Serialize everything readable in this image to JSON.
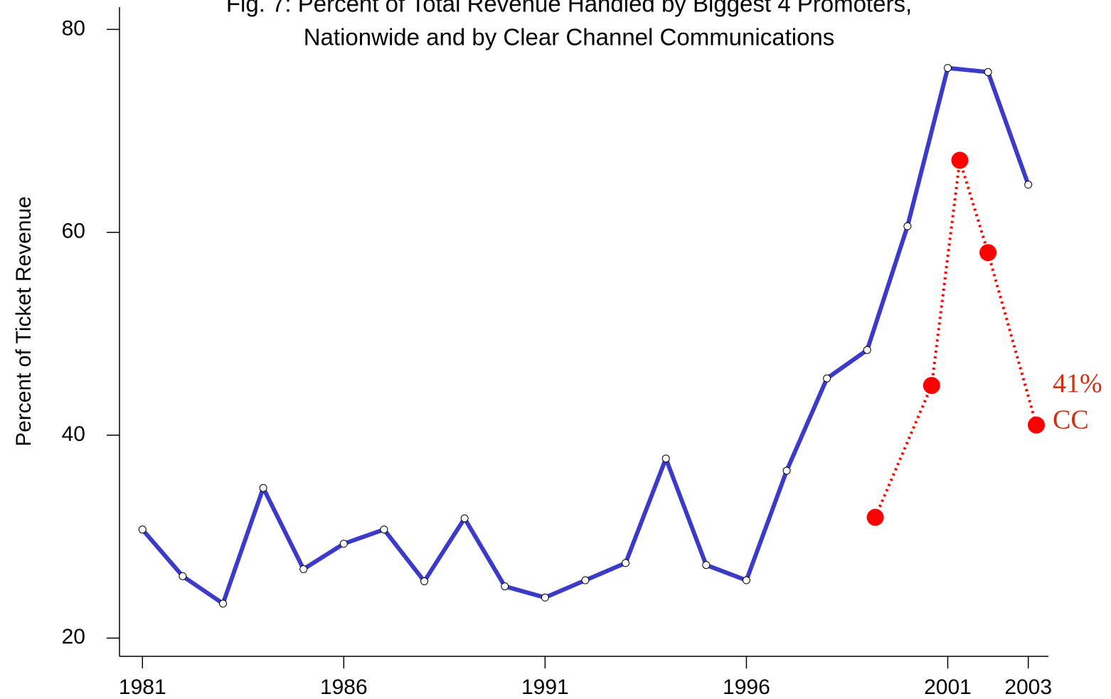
{
  "chart_data": {
    "type": "line",
    "title": [
      "Fig. 7: Percent of Total Revenue Handled by Biggest 4 Promoters,",
      "Nationwide and by Clear Channel Communications"
    ],
    "y_label": "Percent of Ticket Revenue",
    "xlim": [
      1980.43,
      2003.5
    ],
    "xticks": [
      1981,
      1986,
      1991,
      1996,
      2001,
      2003
    ],
    "ylim": [
      18.2,
      82.2
    ],
    "yticks": [
      20,
      40,
      60,
      80
    ],
    "series": [
      {
        "color": "#3b3bc8",
        "style": "solid",
        "x": [
          1981,
          1982,
          1983,
          1984,
          1985,
          1986,
          1987,
          1988,
          1989,
          1990,
          1991,
          1992,
          1993,
          1994,
          1995,
          1996,
          1997,
          1998,
          1999,
          2000,
          2001,
          2002,
          2003
        ],
        "values": [
          30.7,
          26.1,
          23.4,
          34.8,
          26.8,
          29.3,
          30.7,
          25.6,
          31.8,
          25.1,
          24.0,
          25.7,
          27.4,
          37.7,
          27.2,
          25.7,
          36.5,
          45.6,
          48.4,
          60.6,
          76.2,
          75.8,
          64.7
        ]
      },
      {
        "color": "#ff0000",
        "style": "dotted",
        "x": [
          1999.2,
          2000.6,
          2001.3,
          2002.0,
          2003.2
        ],
        "values": [
          31.9,
          44.9,
          67.1,
          58.0,
          41
        ]
      }
    ],
    "annotations": [
      "41%",
      "CC"
    ]
  }
}
